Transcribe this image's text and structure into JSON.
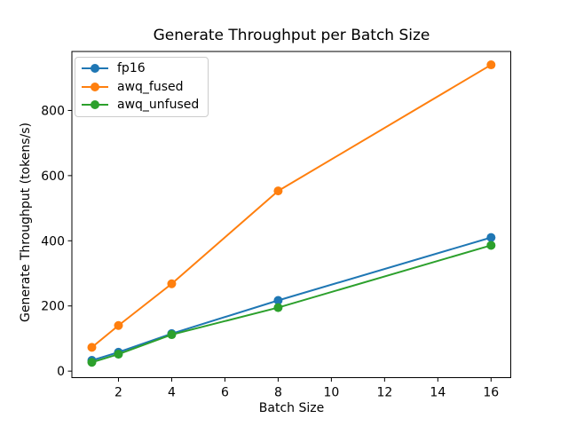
{
  "chart_data": {
    "type": "line",
    "title": "Generate Throughput per Batch Size",
    "xlabel": "Batch Size",
    "ylabel": "Generate Throughput (tokens/s)",
    "x": [
      1,
      2,
      4,
      8,
      16
    ],
    "series": [
      {
        "name": "fp16",
        "color": "#1f77b4",
        "values": [
          33,
          58,
          115,
          217,
          410
        ]
      },
      {
        "name": "awq_fused",
        "color": "#ff7f0e",
        "values": [
          73,
          140,
          268,
          553,
          940
        ]
      },
      {
        "name": "awq_unfused",
        "color": "#2ca02c",
        "values": [
          27,
          52,
          112,
          195,
          386
        ]
      }
    ],
    "xticks": [
      2,
      4,
      6,
      8,
      10,
      12,
      14,
      16
    ],
    "yticks": [
      0,
      200,
      400,
      600,
      800
    ],
    "xlim": [
      0.25,
      16.74
    ],
    "ylim": [
      -20,
      981
    ],
    "grid": false,
    "marker": "o",
    "legend_position": "upper left"
  }
}
